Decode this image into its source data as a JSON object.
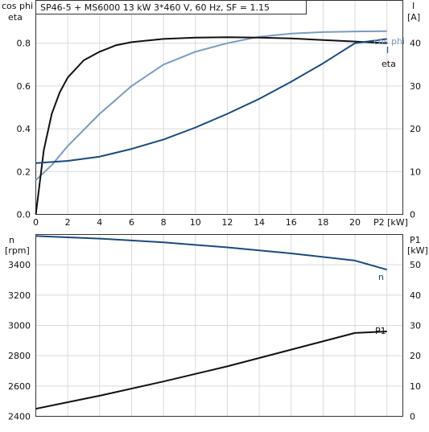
{
  "chart_data": [
    {
      "type": "line",
      "title": "SP46-5 + MS6000   13 kW   3*460 V, 60 Hz, SF = 1.15",
      "x": {
        "label": "P2 [kW]",
        "range": [
          0,
          23
        ],
        "ticks": [
          0,
          2,
          4,
          6,
          8,
          10,
          12,
          14,
          16,
          18,
          20
        ]
      },
      "y_left": {
        "label": [
          "cos phi",
          "eta"
        ],
        "range": [
          0,
          1.0
        ],
        "ticks": [
          "0.0",
          "0.2",
          "0.4",
          "0.6",
          "0.8"
        ]
      },
      "y_right": {
        "label": [
          "I",
          "[A]"
        ],
        "range": [
          0,
          50
        ],
        "ticks": [
          "0",
          "10",
          "20",
          "30",
          "40"
        ]
      },
      "grid": true,
      "series": [
        {
          "name": "cos phi",
          "axis": "left",
          "color": "#7a9cc0",
          "x": [
            0,
            1,
            2,
            4,
            6,
            8,
            10,
            12,
            14,
            16,
            18,
            20,
            22
          ],
          "y": [
            0.16,
            0.23,
            0.32,
            0.47,
            0.6,
            0.7,
            0.76,
            0.8,
            0.83,
            0.845,
            0.852,
            0.855,
            0.856
          ]
        },
        {
          "name": "eta",
          "axis": "left",
          "color": "#111111",
          "x": [
            0,
            0.5,
            1,
            1.5,
            2,
            3,
            4,
            5,
            6,
            8,
            10,
            12,
            14,
            16,
            18,
            20,
            22
          ],
          "y": [
            0.0,
            0.3,
            0.47,
            0.57,
            0.64,
            0.72,
            0.76,
            0.79,
            0.805,
            0.82,
            0.826,
            0.828,
            0.826,
            0.822,
            0.815,
            0.808,
            0.8
          ]
        },
        {
          "name": "I",
          "axis": "right",
          "color": "#1a4a80",
          "x": [
            0,
            2,
            4,
            6,
            8,
            10,
            12,
            14,
            16,
            18,
            20,
            22
          ],
          "y": [
            12,
            12.5,
            13.5,
            15.3,
            17.5,
            20.3,
            23.5,
            27,
            31,
            35.3,
            40,
            41
          ]
        }
      ]
    },
    {
      "type": "line",
      "x": {
        "label": "P2 [kW]",
        "range": [
          0,
          23
        ]
      },
      "y_left": {
        "label": [
          "n",
          "[rpm]"
        ],
        "range": [
          2400,
          3600
        ],
        "ticks": [
          "2400",
          "2600",
          "2800",
          "3000",
          "3200",
          "3400"
        ]
      },
      "y_right": {
        "label": [
          "P1",
          "[kW]"
        ],
        "range": [
          0,
          60
        ],
        "ticks": [
          "0",
          "10",
          "20",
          "30",
          "40",
          "50"
        ]
      },
      "grid": true,
      "series": [
        {
          "name": "n",
          "axis": "left",
          "color": "#1a4a80",
          "x": [
            0,
            4,
            8,
            12,
            16,
            20,
            22
          ],
          "y": [
            3590,
            3573,
            3548,
            3515,
            3475,
            3428,
            3368
          ]
        },
        {
          "name": "P1",
          "axis": "right",
          "color": "#111111",
          "x": [
            0,
            4,
            8,
            12,
            16,
            20,
            22
          ],
          "y": [
            2.5,
            6.8,
            11.5,
            16.5,
            22,
            27.5,
            28
          ]
        }
      ]
    }
  ]
}
